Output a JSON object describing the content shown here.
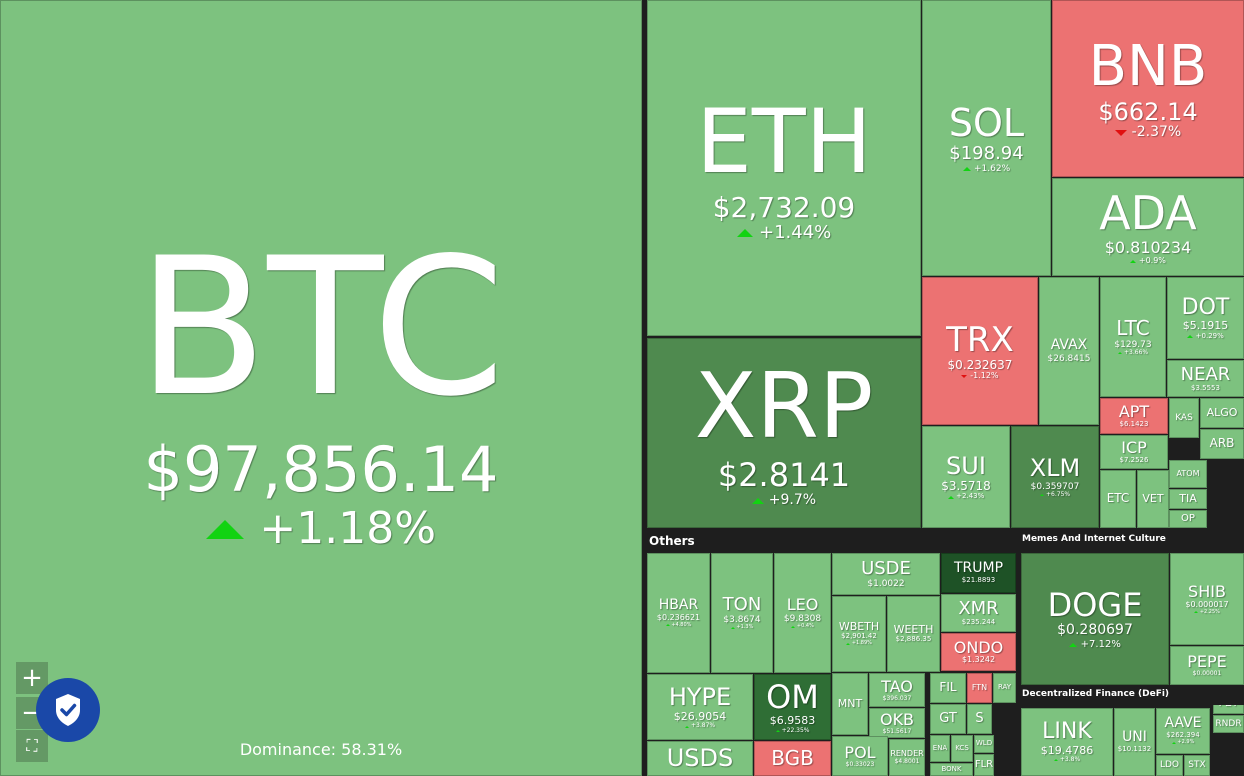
{
  "tiles": [
    {
      "symbol": "BTC",
      "price": "$97,856.14",
      "change": "+1.18%"
    },
    {
      "symbol": "ETH",
      "price": "$2,732.09",
      "change": "+1.44%"
    },
    {
      "symbol": "XRP",
      "price": "$2.8141",
      "change": "+9.7%"
    },
    {
      "symbol": "SOL",
      "price": "$198.94",
      "change": "+1.62%"
    },
    {
      "symbol": "BNB",
      "price": "$662.14",
      "change": "-2.37%"
    },
    {
      "symbol": "ADA",
      "price": "$0.810234",
      "change": "+0.9%"
    },
    {
      "symbol": "TRX",
      "price": "$0.232637",
      "change": "-1.12%"
    },
    {
      "symbol": "AVAX",
      "price": "$26.8415"
    },
    {
      "symbol": "LTC",
      "price": "$129.73",
      "change": "+3.66%"
    },
    {
      "symbol": "DOT",
      "price": "$5.1915",
      "change": "+0.29%"
    },
    {
      "symbol": "NEAR",
      "price": "$3.5553"
    },
    {
      "symbol": "APT",
      "price": "$6.1423"
    },
    {
      "symbol": "ICP",
      "price": "$7.2526"
    },
    {
      "symbol": "KAS"
    },
    {
      "symbol": "ALGO"
    },
    {
      "symbol": "ARB"
    },
    {
      "symbol": "ATOM"
    },
    {
      "symbol": "SUI",
      "price": "$3.5718",
      "change": "+2.43%"
    },
    {
      "symbol": "XLM",
      "price": "$0.359707",
      "change": "+6.75%"
    },
    {
      "symbol": "ETC"
    },
    {
      "symbol": "VET"
    },
    {
      "symbol": "TIA"
    },
    {
      "symbol": "OP"
    },
    {
      "symbol": "HBAR",
      "price": "$0.236621",
      "change": "+4.80%"
    },
    {
      "symbol": "TON",
      "price": "$3.8674",
      "change": "+1.3%"
    },
    {
      "symbol": "LEO",
      "price": "$9.8308",
      "change": "+0.4%"
    },
    {
      "symbol": "USDE",
      "price": "$1.0022"
    },
    {
      "symbol": "WBETH",
      "price": "$2,901.42",
      "change": "+1.89%"
    },
    {
      "symbol": "WEETH",
      "price": "$2,886.35"
    },
    {
      "symbol": "TRUMP",
      "price": "$21.8893"
    },
    {
      "symbol": "XMR",
      "price": "$235.244"
    },
    {
      "symbol": "ONDO",
      "price": "$1.3242"
    },
    {
      "symbol": "HYPE",
      "price": "$26.9054",
      "change": "+3.87%"
    },
    {
      "symbol": "OM",
      "price": "$6.9583",
      "change": "+22.35%"
    },
    {
      "symbol": "USDS"
    },
    {
      "symbol": "BGB"
    },
    {
      "symbol": "MNT"
    },
    {
      "symbol": "TAO",
      "price": "$396.037"
    },
    {
      "symbol": "OKB",
      "price": "$51.5617"
    },
    {
      "symbol": "POL",
      "price": "$0.33023"
    },
    {
      "symbol": "RENDER",
      "price": "$4.8001"
    },
    {
      "symbol": "FIL"
    },
    {
      "symbol": "FTN"
    },
    {
      "symbol": "RAY"
    },
    {
      "symbol": "GT"
    },
    {
      "symbol": "S"
    },
    {
      "symbol": "ENA"
    },
    {
      "symbol": "KCS"
    },
    {
      "symbol": "WLD"
    },
    {
      "symbol": "FLR"
    },
    {
      "symbol": "BONK"
    },
    {
      "symbol": "DOGE",
      "price": "$0.280697",
      "change": "+7.12%"
    },
    {
      "symbol": "SHIB",
      "price": "$0.000017",
      "change": "+2.25%"
    },
    {
      "symbol": "PEPE",
      "price": "$0.00001"
    },
    {
      "symbol": "LINK",
      "price": "$19.4786",
      "change": "+3.8%"
    },
    {
      "symbol": "UNI",
      "price": "$10.1132"
    },
    {
      "symbol": "AAVE",
      "price": "$262.394",
      "change": "+2.9%"
    },
    {
      "symbol": "LDO"
    },
    {
      "symbol": "STX"
    },
    {
      "symbol": "FET"
    },
    {
      "symbol": "RNDR"
    }
  ],
  "sections": [
    "Others",
    "Memes And Internet Culture",
    "Decentralized Finance (DeFi)"
  ],
  "dominance": "Dominance: 58.31%"
}
